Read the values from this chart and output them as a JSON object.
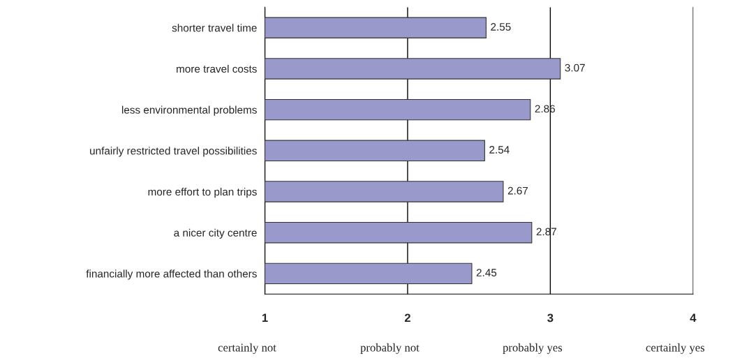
{
  "chart_data": {
    "type": "bar",
    "orientation": "horizontal",
    "categories": [
      "shorter travel time",
      "more travel costs",
      "less environmental problems",
      "unfairly restricted travel possibilities",
      "more effort to plan trips",
      "a nicer city centre",
      "financially more affected than others"
    ],
    "values": [
      2.55,
      3.07,
      2.86,
      2.54,
      2.67,
      2.87,
      2.45
    ],
    "color": "#9999cc",
    "xlim": [
      1,
      4
    ],
    "xticks": [
      1,
      2,
      3,
      4
    ],
    "grid": "x",
    "data_labels": true,
    "annotations": [
      "certainly not",
      "probably not",
      "probably yes",
      "certainly yes"
    ]
  }
}
